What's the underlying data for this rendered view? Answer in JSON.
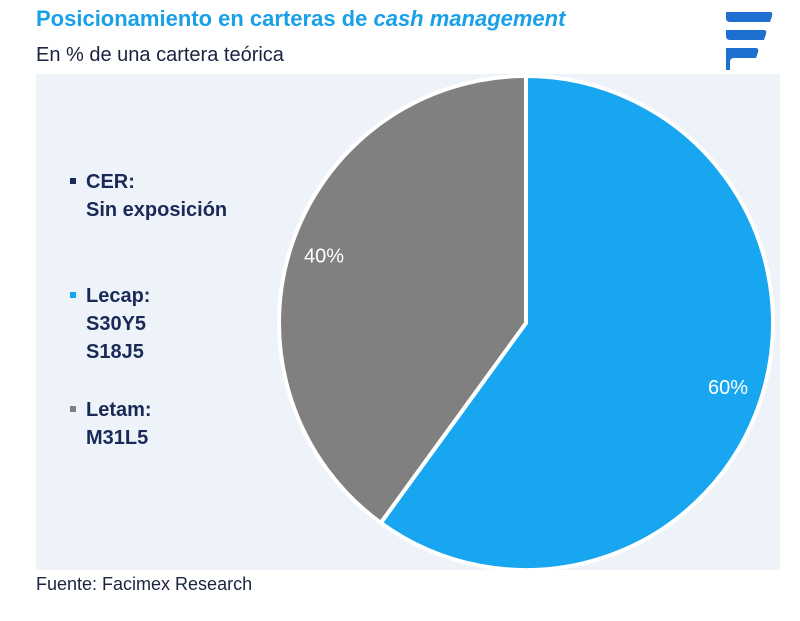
{
  "header": {
    "title_prefix": "Posicionamiento en carteras de ",
    "title_emphasis": "cash management",
    "subtitle": "En % de una cartera teórica"
  },
  "legend": {
    "items": [
      {
        "lines": [
          "CER:",
          "Sin exposición"
        ],
        "color": "#1a2a57"
      },
      {
        "lines": [
          "Lecap:",
          "S30Y5",
          "S18J5"
        ],
        "color": "#19a6f0"
      },
      {
        "lines": [
          "Letam:",
          "M31L5"
        ],
        "color": "#808080"
      }
    ]
  },
  "chart_data": {
    "type": "pie",
    "slices": [
      {
        "label": "Lecap",
        "value": 60,
        "data_label": "60%",
        "color": "#19a6f0"
      },
      {
        "label": "Letam",
        "value": 40,
        "data_label": "40%",
        "color": "#808080"
      }
    ],
    "start_angle_deg": 0,
    "direction": "clockwise"
  },
  "footer": {
    "source": "Fuente: Facimex Research"
  },
  "logo": {
    "icon": "facimex-logo-icon",
    "color": "#1f6fd1"
  }
}
